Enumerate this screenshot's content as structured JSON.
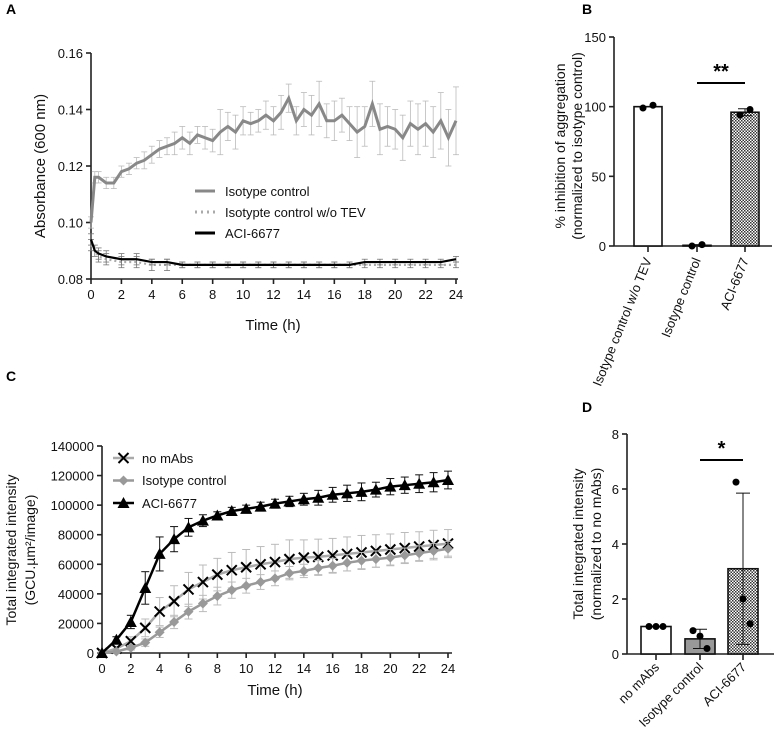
{
  "panels": {
    "a": "A",
    "b": "B",
    "c": "C",
    "d": "D"
  },
  "chart_data": [
    {
      "panel": "A",
      "type": "line",
      "xlabel": "Time (h)",
      "ylabel": "Absorbance (600 nm)",
      "xlim": [
        0,
        24
      ],
      "ylim": [
        0.08,
        0.16
      ],
      "xticks": [
        "0",
        "2",
        "4",
        "6",
        "8",
        "10",
        "12",
        "14",
        "16",
        "18",
        "20",
        "22",
        "24"
      ],
      "yticks": [
        "0.08",
        "0.10",
        "0.12",
        "0.14",
        "0.16"
      ],
      "legend_position": "center",
      "series": [
        {
          "name": "Isotype control",
          "color": "#888888",
          "style": "solid",
          "x": [
            0,
            0.25,
            0.5,
            1,
            1.5,
            2,
            2.5,
            3,
            3.5,
            4,
            4.5,
            5,
            5.5,
            6,
            6.5,
            7,
            7.5,
            8,
            8.5,
            9,
            9.5,
            10,
            10.5,
            11,
            11.5,
            12,
            12.5,
            13,
            13.5,
            14,
            14.5,
            15,
            15.5,
            16,
            16.5,
            17,
            17.5,
            18,
            18.5,
            19,
            19.5,
            20,
            20.5,
            21,
            21.5,
            22,
            22.5,
            23,
            23.5,
            24
          ],
          "y": [
            0.1,
            0.116,
            0.116,
            0.114,
            0.114,
            0.118,
            0.119,
            0.121,
            0.122,
            0.124,
            0.126,
            0.127,
            0.128,
            0.13,
            0.128,
            0.131,
            0.13,
            0.129,
            0.132,
            0.134,
            0.132,
            0.136,
            0.135,
            0.136,
            0.138,
            0.136,
            0.139,
            0.144,
            0.136,
            0.14,
            0.138,
            0.142,
            0.136,
            0.136,
            0.138,
            0.135,
            0.132,
            0.134,
            0.142,
            0.133,
            0.134,
            0.133,
            0.13,
            0.135,
            0.133,
            0.135,
            0.132,
            0.136,
            0.13,
            0.136
          ],
          "err": [
            0.002,
            0.002,
            0.002,
            0.002,
            0.002,
            0.002,
            0.002,
            0.002,
            0.003,
            0.003,
            0.003,
            0.003,
            0.004,
            0.004,
            0.004,
            0.003,
            0.004,
            0.004,
            0.008,
            0.005,
            0.006,
            0.005,
            0.004,
            0.004,
            0.005,
            0.005,
            0.006,
            0.005,
            0.005,
            0.006,
            0.007,
            0.008,
            0.006,
            0.007,
            0.006,
            0.006,
            0.009,
            0.007,
            0.008,
            0.009,
            0.007,
            0.007,
            0.008,
            0.008,
            0.009,
            0.008,
            0.009,
            0.01,
            0.01,
            0.012
          ]
        },
        {
          "name": "Isotypte control w/o TEV",
          "color": "#aaaaaa",
          "style": "dotted",
          "x": [
            0,
            0.5,
            1,
            2,
            3,
            4,
            5,
            6,
            7,
            8,
            9,
            10,
            11,
            12,
            13,
            14,
            15,
            16,
            17,
            18,
            19,
            20,
            21,
            22,
            23,
            24
          ],
          "y": [
            0.092,
            0.088,
            0.087,
            0.086,
            0.086,
            0.085,
            0.085,
            0.085,
            0.085,
            0.085,
            0.085,
            0.085,
            0.085,
            0.085,
            0.085,
            0.085,
            0.085,
            0.085,
            0.085,
            0.085,
            0.085,
            0.085,
            0.085,
            0.085,
            0.085,
            0.085
          ],
          "err": [
            0.002,
            0.002,
            0.002,
            0.002,
            0.002,
            0.002,
            0.002,
            0.001,
            0.001,
            0.001,
            0.001,
            0.001,
            0.001,
            0.001,
            0.001,
            0.001,
            0.001,
            0.001,
            0.001,
            0.001,
            0.001,
            0.001,
            0.001,
            0.001,
            0.001,
            0.001
          ]
        },
        {
          "name": "ACI-6677",
          "color": "#000000",
          "style": "solid",
          "x": [
            0,
            0.25,
            0.5,
            1,
            2,
            3,
            4,
            5,
            6,
            7,
            8,
            9,
            10,
            11,
            12,
            13,
            14,
            15,
            16,
            17,
            18,
            19,
            20,
            21,
            22,
            23,
            24
          ],
          "y": [
            0.094,
            0.09,
            0.089,
            0.088,
            0.087,
            0.087,
            0.086,
            0.086,
            0.085,
            0.085,
            0.085,
            0.085,
            0.085,
            0.085,
            0.085,
            0.085,
            0.085,
            0.085,
            0.085,
            0.085,
            0.086,
            0.086,
            0.086,
            0.086,
            0.086,
            0.086,
            0.087
          ],
          "err": [
            0.002,
            0.002,
            0.002,
            0.002,
            0.002,
            0.002,
            0.001,
            0.001,
            0.001,
            0.001,
            0.001,
            0.001,
            0.001,
            0.001,
            0.001,
            0.001,
            0.001,
            0.001,
            0.001,
            0.001,
            0.001,
            0.001,
            0.001,
            0.001,
            0.001,
            0.001,
            0.001
          ]
        }
      ]
    },
    {
      "panel": "B",
      "type": "bar",
      "ylabel": [
        "% inhibition of aggregation",
        "(normalized to isotype control)"
      ],
      "ylim": [
        0,
        150
      ],
      "yticks": [
        "0",
        "50",
        "100",
        "150"
      ],
      "categories": [
        "Isotype control w/o TEV",
        "Isotype control",
        "ACI-6677"
      ],
      "values": [
        100,
        0.5,
        96
      ],
      "err": [
        0,
        0.5,
        2.5
      ],
      "points": [
        [
          99,
          101
        ],
        [
          0,
          1
        ],
        [
          94,
          98
        ]
      ],
      "fills": [
        "white",
        "white",
        "hatch"
      ],
      "significance": {
        "between": [
          1,
          2
        ],
        "label": "**"
      }
    },
    {
      "panel": "C",
      "type": "line",
      "xlabel": "Time (h)",
      "ylabel": [
        "Total integrated intensity",
        "(GCU.µm²/image)"
      ],
      "xlim": [
        0,
        24
      ],
      "ylim": [
        0,
        140000
      ],
      "xticks": [
        "0",
        "2",
        "4",
        "6",
        "8",
        "10",
        "12",
        "14",
        "16",
        "18",
        "20",
        "22",
        "24"
      ],
      "yticks": [
        "0",
        "20000",
        "40000",
        "60000",
        "80000",
        "100000",
        "120000",
        "140000"
      ],
      "legend_position": "top-left",
      "x": [
        0,
        1,
        2,
        3,
        4,
        5,
        6,
        7,
        8,
        9,
        10,
        11,
        12,
        13,
        14,
        15,
        16,
        17,
        18,
        19,
        20,
        21,
        22,
        23,
        24
      ],
      "series": [
        {
          "name": "no mAbs",
          "marker": "x",
          "color": "#000000",
          "line": "#aaaaaa",
          "values": [
            0,
            3000,
            8000,
            17000,
            28000,
            35000,
            43000,
            48000,
            53000,
            56000,
            58000,
            60000,
            61500,
            63500,
            64500,
            65000,
            66000,
            67000,
            68000,
            69000,
            70000,
            71000,
            72000,
            73000,
            74000
          ],
          "err": [
            0,
            1500,
            3000,
            6000,
            9500,
            10500,
            11500,
            11500,
            11000,
            12000,
            12000,
            12000,
            12000,
            13000,
            12000,
            12000,
            11500,
            11500,
            11500,
            11000,
            10500,
            10500,
            10000,
            10000,
            9500
          ]
        },
        {
          "name": "Isotype control",
          "marker": "diamond",
          "color": "#999999",
          "line": "#999999",
          "values": [
            0,
            1000,
            3500,
            7000,
            14000,
            21000,
            28000,
            33500,
            38500,
            42500,
            45500,
            48000,
            50500,
            54000,
            55500,
            57500,
            59000,
            61000,
            62500,
            63500,
            64500,
            66000,
            67500,
            69000,
            70500
          ],
          "err": [
            0,
            800,
            1500,
            2500,
            3500,
            4500,
            5000,
            5500,
            6000,
            5500,
            5000,
            5000,
            5000,
            4500,
            4500,
            5000,
            5000,
            5500,
            5500,
            5500,
            5500,
            5000,
            5000,
            5000,
            5000
          ]
        },
        {
          "name": "ACI-6677",
          "marker": "triangle",
          "color": "#000000",
          "line": "#000000",
          "values": [
            0,
            9000,
            21000,
            44000,
            67000,
            77000,
            85000,
            89500,
            93000,
            96000,
            97500,
            99000,
            101000,
            102500,
            104000,
            105000,
            107000,
            108000,
            109000,
            110500,
            112500,
            113500,
            114500,
            115500,
            117000
          ],
          "err": [
            0,
            2000,
            4500,
            11000,
            11500,
            8500,
            6000,
            4000,
            2500,
            2500,
            2500,
            3000,
            3000,
            3500,
            4000,
            5000,
            5000,
            5500,
            6000,
            5000,
            5500,
            5500,
            6000,
            6500,
            6000
          ]
        }
      ]
    },
    {
      "panel": "D",
      "type": "bar",
      "ylabel": [
        "Total integrated intensity",
        "(normalized to no mAbs)"
      ],
      "ylim": [
        0,
        8
      ],
      "yticks": [
        "0",
        "2",
        "4",
        "6",
        "8"
      ],
      "categories": [
        "no mAbs",
        "Isotype control",
        "ACI-6677"
      ],
      "values": [
        1.0,
        0.55,
        3.1
      ],
      "err": [
        0,
        0.35,
        2.75
      ],
      "points": [
        [
          1,
          1,
          1
        ],
        [
          0.85,
          0.65,
          0.2
        ],
        [
          6.25,
          2.0,
          1.1
        ]
      ],
      "fills": [
        "white",
        "#999999",
        "hatch"
      ],
      "significance": {
        "between": [
          1,
          2
        ],
        "label": "*"
      }
    }
  ]
}
